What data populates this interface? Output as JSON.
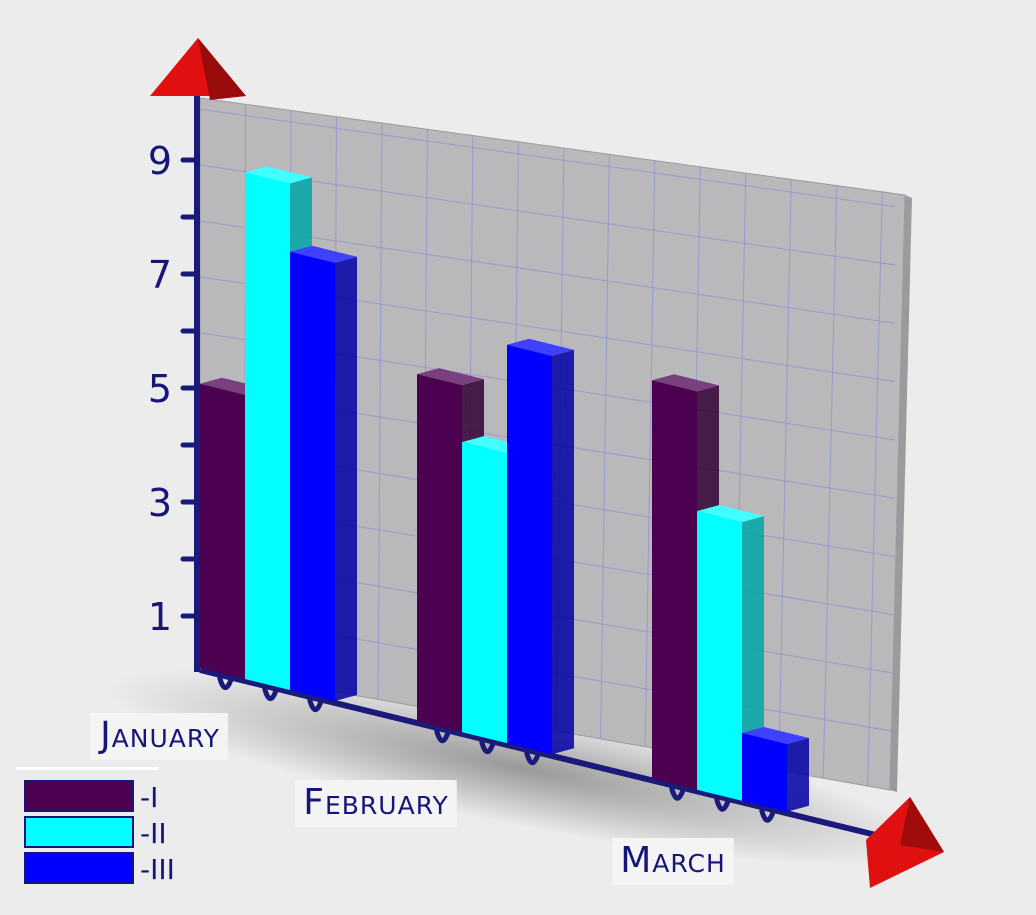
{
  "chart_data": {
    "type": "bar",
    "title": "",
    "xlabel": "",
    "ylabel": "",
    "categories": [
      "January",
      "February",
      "March"
    ],
    "series": [
      {
        "name": "-I",
        "color": "#4b0050",
        "values": [
          4.9,
          6.0,
          6.9
        ]
      },
      {
        "name": "-II",
        "color": "#00ffff",
        "values": [
          8.8,
          5.0,
          4.8
        ]
      },
      {
        "name": "-III",
        "color": "#0000ff",
        "values": [
          7.6,
          6.9,
          1.1
        ]
      }
    ],
    "yticks": [
      "1",
      "3",
      "5",
      "7",
      "9"
    ],
    "ylim": [
      0,
      10
    ],
    "grid": true,
    "legend": "bottom-left",
    "style": "3d"
  }
}
